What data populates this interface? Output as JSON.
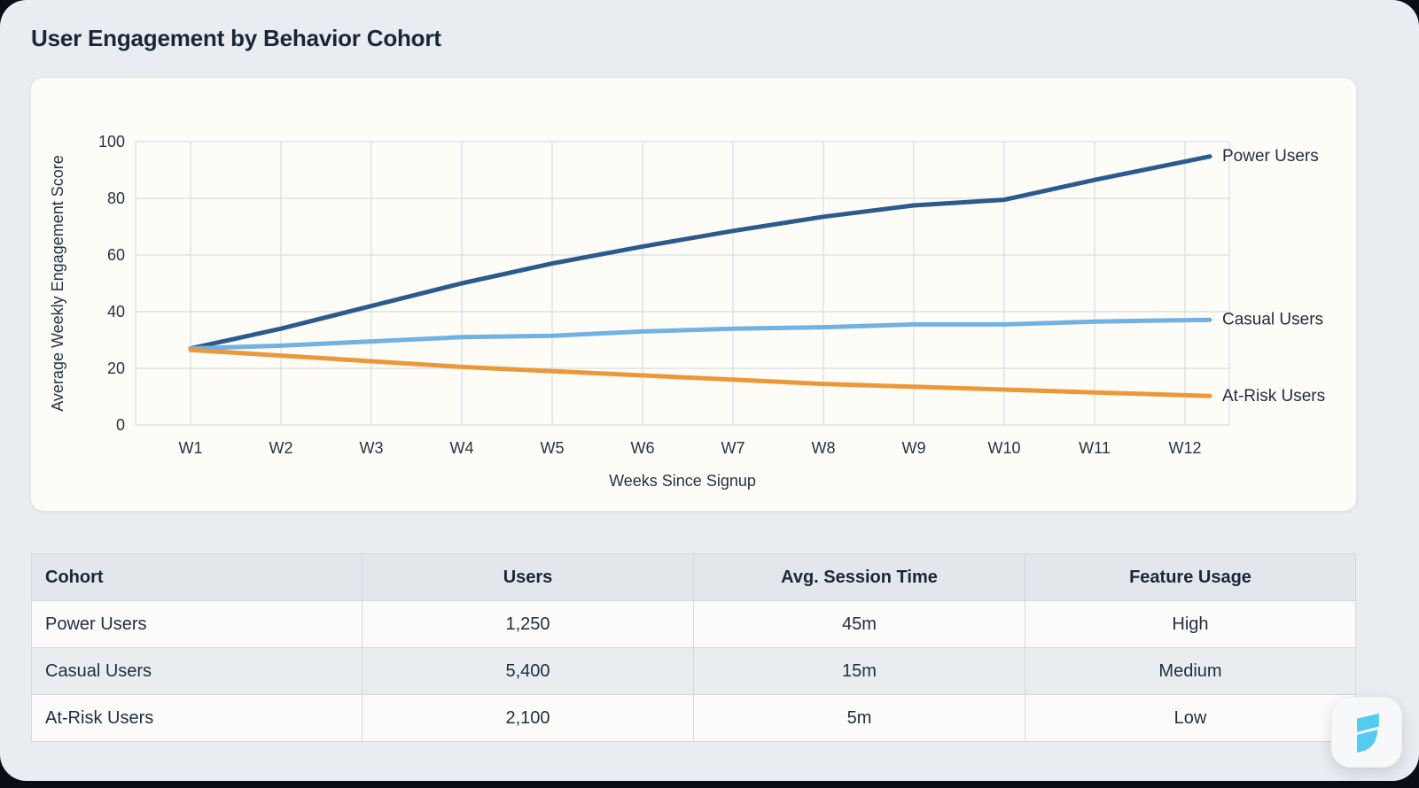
{
  "header": {
    "title": "User Engagement by Behavior Cohort"
  },
  "chart_data": {
    "type": "line",
    "title": "",
    "xlabel": "Weeks Since Signup",
    "ylabel": "Average Weekly Engagement Score",
    "categories": [
      "W1",
      "W2",
      "W3",
      "W4",
      "W5",
      "W6",
      "W7",
      "W8",
      "W9",
      "W10",
      "W11",
      "W12"
    ],
    "y_ticks": [
      0,
      20,
      40,
      60,
      80,
      100
    ],
    "ylim": [
      0,
      100
    ],
    "grid": true,
    "legend_position": "right-of-line-ends",
    "series": [
      {
        "name": "Power Users",
        "color": "#2b5b8e",
        "values": [
          27,
          34,
          42,
          50,
          57,
          63,
          68.5,
          73.5,
          77.5,
          79.5,
          86.5,
          93
        ]
      },
      {
        "name": "Casual Users",
        "color": "#71b1e3",
        "values": [
          27,
          28,
          29.5,
          31,
          31.5,
          33,
          34,
          34.5,
          35.5,
          35.5,
          36.5,
          37
        ]
      },
      {
        "name": "At-Risk Users",
        "color": "#ec9838",
        "values": [
          26.5,
          24.5,
          22.5,
          20.5,
          19,
          17.5,
          16,
          14.5,
          13.5,
          12.5,
          11.5,
          10.5
        ]
      }
    ]
  },
  "table": {
    "headers": [
      "Cohort",
      "Users",
      "Avg. Session Time",
      "Feature Usage"
    ],
    "rows": [
      [
        "Power Users",
        "1,250",
        "45m",
        "High"
      ],
      [
        "Casual Users",
        "5,400",
        "15m",
        "Medium"
      ],
      [
        "At-Risk Users",
        "2,100",
        "5m",
        "Low"
      ]
    ]
  },
  "logo": {
    "icon": "bolt-flag-logo",
    "color": "#55cbf2"
  },
  "colors": {
    "backdrop": "#0a0e14",
    "card_bg": "#e9ecf0",
    "chart_bg": "#fdfcf7",
    "gridline": "#d9dde3",
    "tick_text": "#243447",
    "table_border": "#d3d8df",
    "header_bg": "#e3e6eb",
    "stripe_bg": "#eaedf0",
    "text_dark": "#1a2639"
  }
}
